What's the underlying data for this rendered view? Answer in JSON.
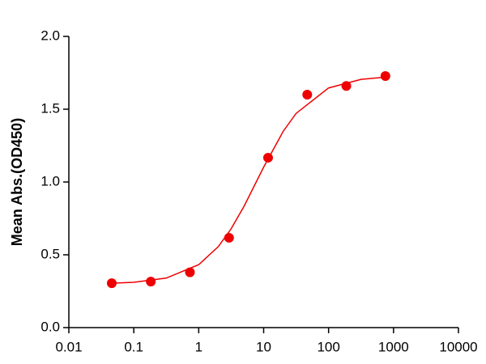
{
  "chart_data": {
    "type": "scatter",
    "y_label": "Mean Abs.(OD450)",
    "x_log": true,
    "x": [
      0.0458,
      0.183,
      0.732,
      2.93,
      11.7,
      46.9,
      187.5,
      750
    ],
    "values": [
      0.305,
      0.316,
      0.38,
      0.617,
      1.167,
      1.6,
      1.66,
      1.728
    ],
    "color": "#ee0000",
    "fit": {
      "x": [
        0.0458,
        0.1,
        0.316,
        1,
        2,
        3.16,
        5,
        10,
        20,
        31.6,
        100,
        316,
        750
      ],
      "values": [
        0.305,
        0.311,
        0.34,
        0.432,
        0.556,
        0.679,
        0.834,
        1.102,
        1.348,
        1.471,
        1.646,
        1.705,
        1.72
      ]
    },
    "xlim": [
      0.01,
      10000
    ],
    "xticks": [
      0.01,
      0.1,
      1,
      10,
      100,
      1000,
      10000
    ],
    "ylim": [
      0,
      2
    ],
    "yticks": [
      {
        "value": 0,
        "label": "0.0"
      },
      0.5,
      {
        "value": 1,
        "label": "1.0"
      },
      1.5,
      {
        "value": 2,
        "label": "2.0"
      }
    ]
  }
}
